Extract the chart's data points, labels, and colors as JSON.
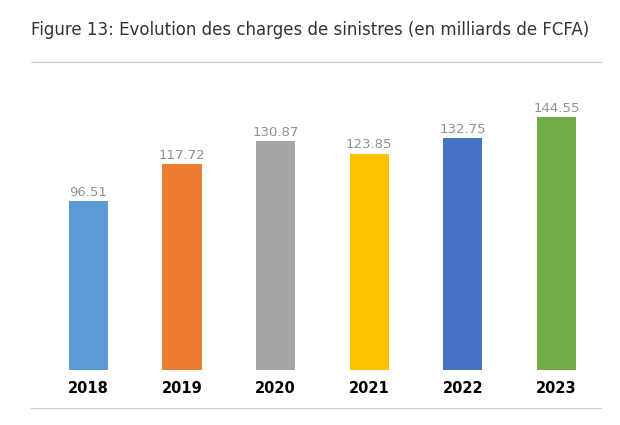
{
  "title": "Figure 13: Evolution des charges de sinistres (en milliards de FCFA)",
  "categories": [
    "2018",
    "2019",
    "2020",
    "2021",
    "2022",
    "2023"
  ],
  "values": [
    96.51,
    117.72,
    130.87,
    123.85,
    132.75,
    144.55
  ],
  "bar_colors": [
    "#5B9BD5",
    "#ED7D31",
    "#A5A5A5",
    "#FFC000",
    "#4472C4",
    "#70AD47"
  ],
  "background_color": "#FFFFFF",
  "label_color": "#909090",
  "ylim": [
    0,
    168
  ],
  "bar_width": 0.42,
  "title_fontsize": 12,
  "tick_fontsize": 10.5,
  "label_fontsize": 9.5,
  "separator_color": "#CCCCCC"
}
